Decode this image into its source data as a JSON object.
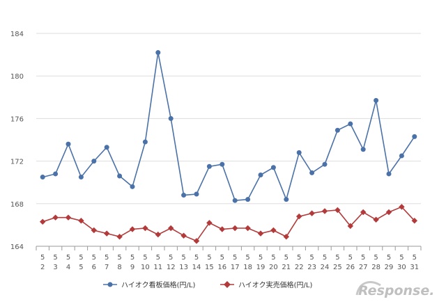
{
  "chart_data": {
    "type": "line",
    "categories": [
      "5\n2",
      "5\n3",
      "5\n4",
      "5\n5",
      "5\n6",
      "5\n7",
      "5\n8",
      "5\n9",
      "5\n10",
      "5\n11",
      "5\n12",
      "5\n13",
      "5\n14",
      "5\n15",
      "5\n16",
      "5\n17",
      "5\n18",
      "5\n19",
      "5\n20",
      "5\n21",
      "5\n22",
      "5\n23",
      "5\n24",
      "5\n25",
      "5\n26",
      "5\n27",
      "5\n28",
      "5\n29",
      "5\n30",
      "5\n31"
    ],
    "x_month": "5",
    "x_days": [
      "2",
      "3",
      "4",
      "5",
      "6",
      "7",
      "8",
      "9",
      "10",
      "11",
      "12",
      "13",
      "14",
      "15",
      "16",
      "17",
      "18",
      "19",
      "20",
      "21",
      "22",
      "23",
      "24",
      "25",
      "26",
      "27",
      "28",
      "29",
      "30",
      "31"
    ],
    "series": [
      {
        "name": "ハイオク看板価格(円/L)",
        "color": "#4a72a8",
        "marker": "circle",
        "values": [
          170.5,
          170.8,
          173.6,
          170.5,
          172.0,
          173.3,
          170.6,
          169.6,
          173.8,
          182.2,
          176.0,
          168.8,
          168.9,
          171.5,
          171.7,
          168.3,
          168.4,
          170.7,
          171.4,
          168.4,
          172.8,
          170.9,
          171.7,
          174.9,
          175.5,
          173.1,
          177.7,
          170.8,
          172.5,
          174.3
        ]
      },
      {
        "name": "ハイオク実売価格(円/L)",
        "color": "#b33a3a",
        "marker": "diamond",
        "values": [
          166.3,
          166.7,
          166.7,
          166.4,
          165.5,
          165.2,
          164.9,
          165.6,
          165.7,
          165.1,
          165.7,
          165.0,
          164.5,
          166.2,
          165.6,
          165.7,
          165.7,
          165.2,
          165.5,
          164.9,
          166.8,
          167.1,
          167.3,
          167.4,
          165.9,
          167.2,
          166.5,
          167.2,
          167.7,
          166.4
        ]
      }
    ],
    "yticks": [
      "164",
      "168",
      "172",
      "176",
      "180",
      "184"
    ],
    "ylim": [
      164,
      184
    ],
    "grid": true,
    "legend": "bottom-center"
  },
  "watermark": {
    "text": "Response.",
    "color": "#bfbfbf"
  }
}
